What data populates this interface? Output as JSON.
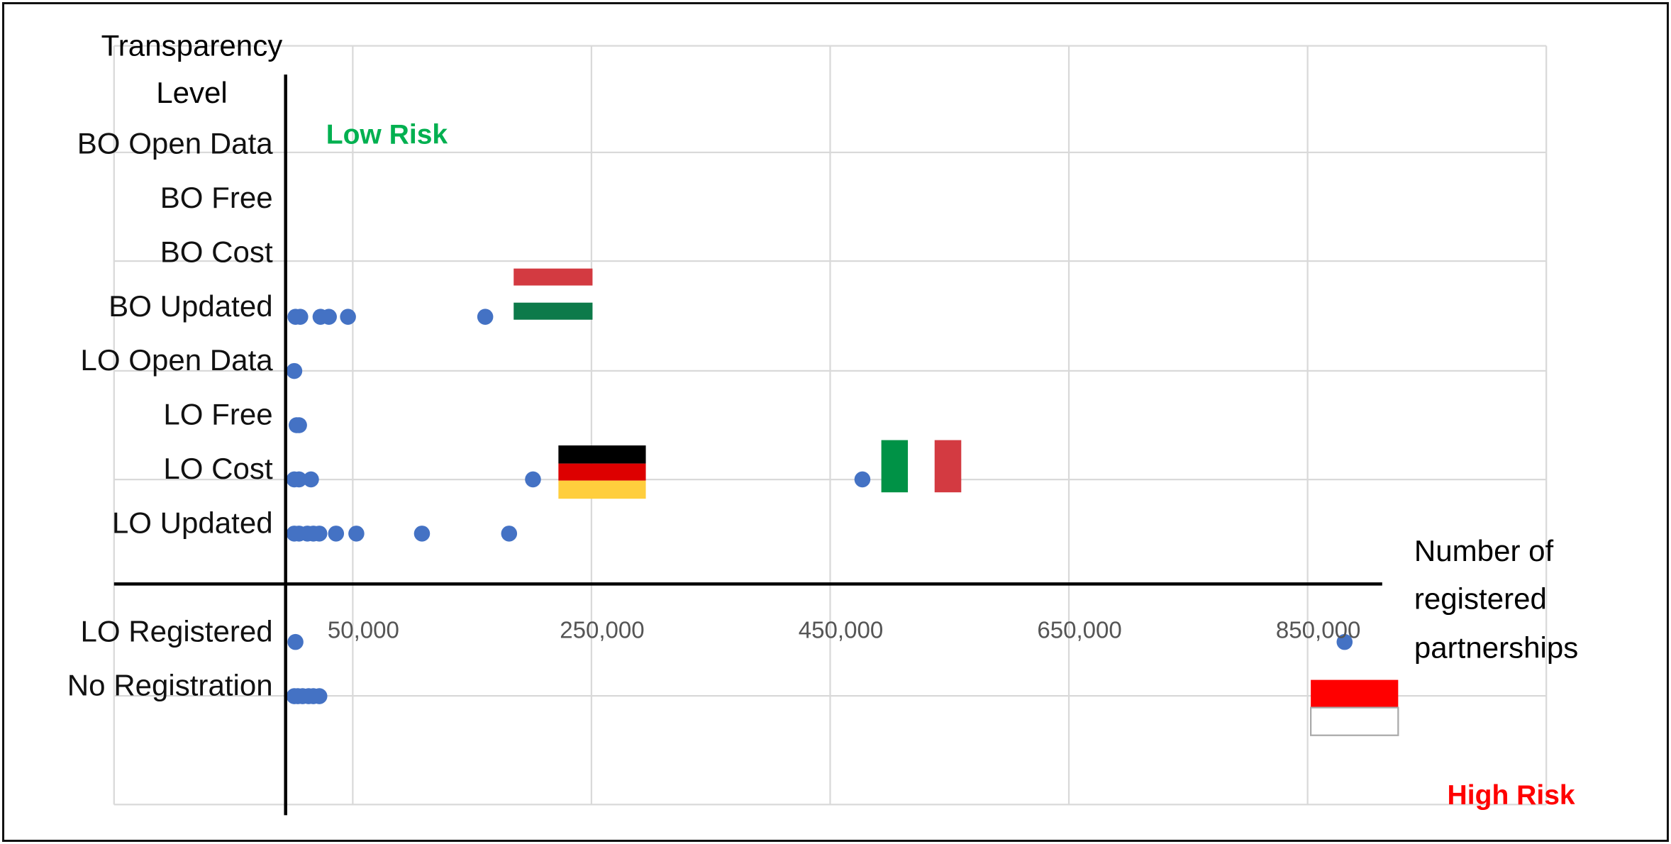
{
  "chart_data": {
    "type": "scatter",
    "y_axis_label": [
      "Transparency",
      "Level"
    ],
    "x_axis_label": [
      "Number of",
      "registered",
      "partnerships"
    ],
    "annotations": [
      "Low Risk",
      "High Risk"
    ],
    "annotation_colors": [
      "#00b050",
      "#ff0000"
    ],
    "color": "#4472c4",
    "xlim": [
      -150000,
      1050000
    ],
    "ylim": [
      -4,
      10
    ],
    "xticks": [
      {
        "value": 50000,
        "label": "50,000"
      },
      {
        "value": 250000,
        "label": "250,000"
      },
      {
        "value": 450000,
        "label": "450,000"
      },
      {
        "value": 650000,
        "label": "650,000"
      },
      {
        "value": 850000,
        "label": "850,000"
      }
    ],
    "yticks": [
      {
        "value": 8,
        "label": "BO Open Data"
      },
      {
        "value": 7,
        "label": "BO Free"
      },
      {
        "value": 6,
        "label": "BO Cost"
      },
      {
        "value": 5,
        "label": "BO Updated"
      },
      {
        "value": 4,
        "label": "LO Open Data"
      },
      {
        "value": 3,
        "label": "LO Free"
      },
      {
        "value": 2,
        "label": "LO Cost"
      },
      {
        "value": 1,
        "label": "LO Updated"
      },
      {
        "value": -1,
        "label": "LO Registered"
      },
      {
        "value": -2,
        "label": "No Registration"
      }
    ],
    "grid": true,
    "x": [
      2000,
      6000,
      23000,
      30000,
      46000,
      161000,
      1000,
      3000,
      5000,
      1000,
      5000,
      15000,
      201000,
      477000,
      1000,
      5000,
      12000,
      17000,
      22000,
      36000,
      53000,
      108000,
      181000,
      2000,
      881000,
      1000,
      4000,
      8000,
      13000,
      17000,
      22000
    ],
    "y": [
      5,
      5,
      5,
      5,
      5,
      5,
      4,
      3,
      3,
      2,
      2,
      2,
      2,
      2,
      1,
      1,
      1,
      1,
      1,
      1,
      1,
      1,
      1,
      -1,
      -1,
      -2,
      -2,
      -2,
      -2,
      -2,
      -2
    ]
  }
}
